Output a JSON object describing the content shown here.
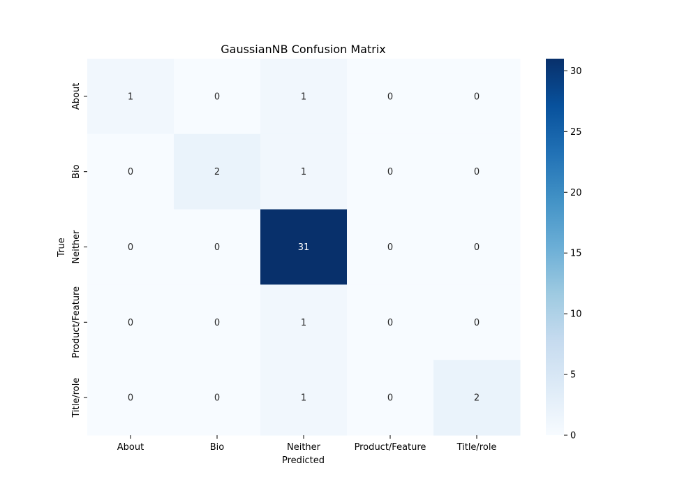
{
  "chart_data": {
    "type": "heatmap",
    "title": "GaussianNB Confusion Matrix",
    "xlabel": "Predicted",
    "ylabel": "True",
    "x_categories": [
      "About",
      "Bio",
      "Neither",
      "Product/Feature",
      "Title/role"
    ],
    "y_categories": [
      "About",
      "Bio",
      "Neither",
      "Product/Feature",
      "Title/role"
    ],
    "values": [
      [
        1,
        0,
        1,
        0,
        0
      ],
      [
        0,
        2,
        1,
        0,
        0
      ],
      [
        0,
        0,
        31,
        0,
        0
      ],
      [
        0,
        0,
        1,
        0,
        0
      ],
      [
        0,
        0,
        1,
        0,
        2
      ]
    ],
    "colormap": "Blues",
    "color_min": "#f7fbff",
    "color_max": "#08306b",
    "colorbar": {
      "range": [
        0,
        31
      ],
      "ticks": [
        0,
        5,
        10,
        15,
        20,
        25,
        30
      ]
    }
  }
}
